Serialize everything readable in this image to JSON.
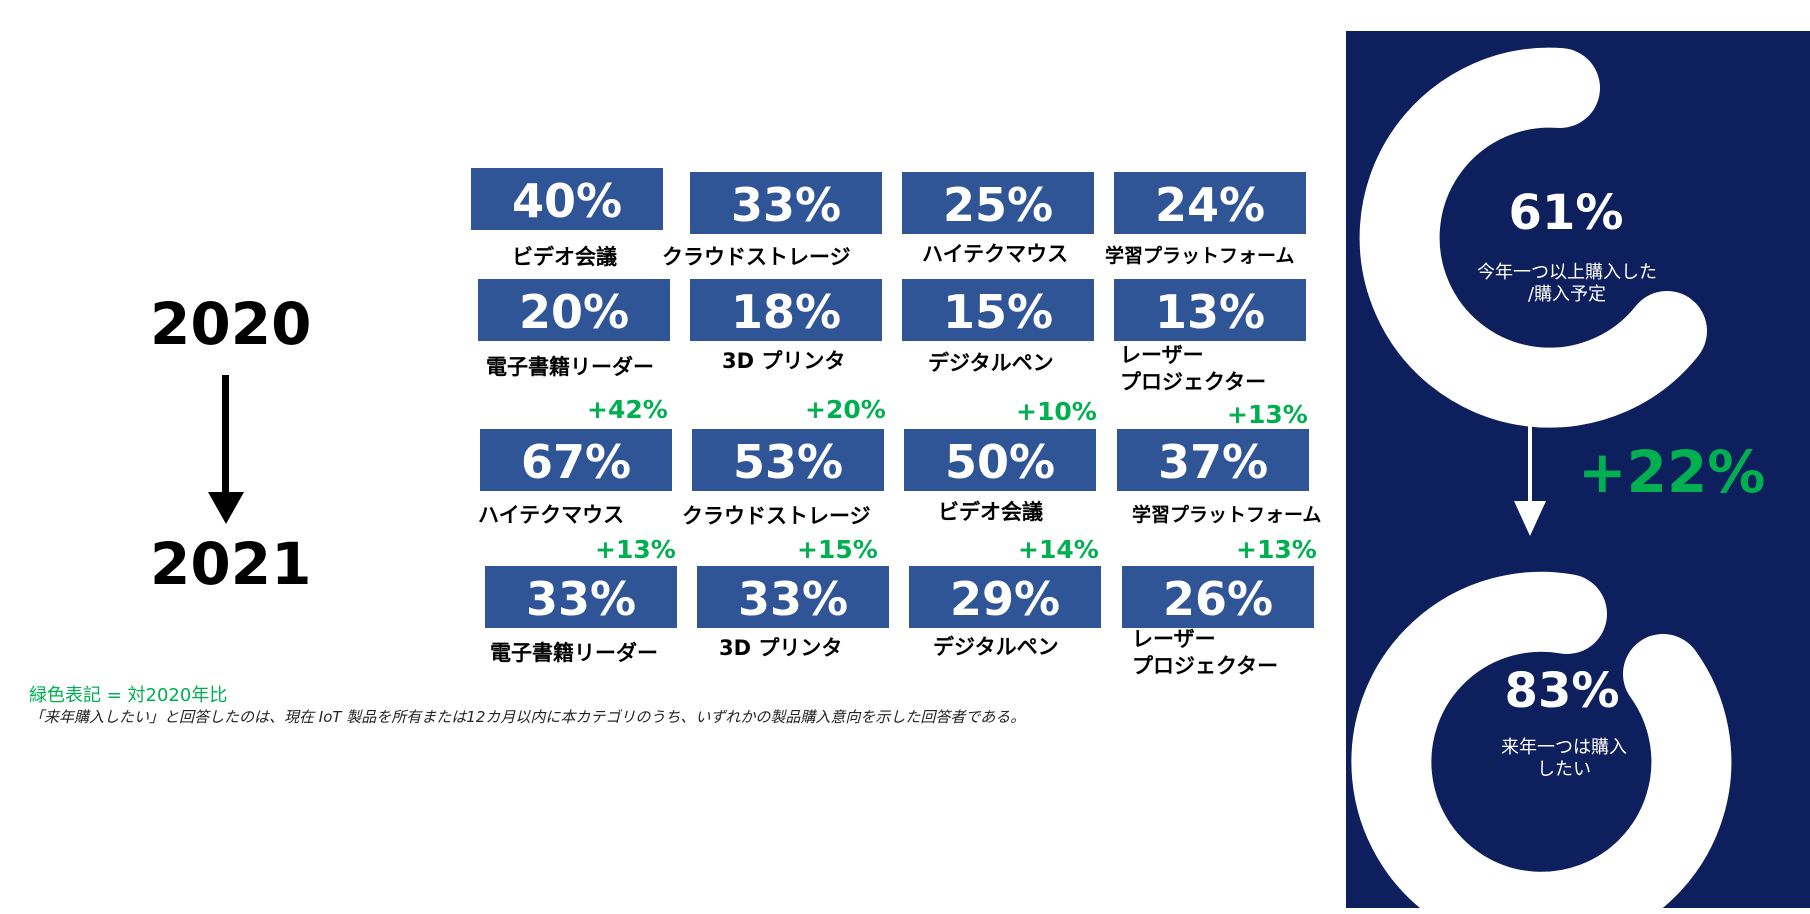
{
  "years": {
    "from": "2020",
    "to": "2021"
  },
  "chart_data": {
    "type": "table",
    "year_2020": [
      {
        "label": "ビデオ会議",
        "value": "40%"
      },
      {
        "label": "クラウドストレージ",
        "value": "33%"
      },
      {
        "label": "ハイテクマウス",
        "value": "25%"
      },
      {
        "label": "学習プラットフォーム",
        "value": "24%"
      },
      {
        "label": "電子書籍リーダー",
        "value": "20%"
      },
      {
        "label": "3D プリンタ",
        "value": "18%"
      },
      {
        "label": "デジタルペン",
        "value": "15%"
      },
      {
        "label": "レーザー\nプロジェクター",
        "value": "13%"
      }
    ],
    "year_2021": [
      {
        "label": "ハイテクマウス",
        "value": "67%",
        "change": "+42%"
      },
      {
        "label": "クラウドストレージ",
        "value": "53%",
        "change": "+20%"
      },
      {
        "label": "ビデオ会議",
        "value": "50%",
        "change": "+10%"
      },
      {
        "label": "学習プラットフォーム",
        "value": "37%",
        "change": "+13%"
      },
      {
        "label": "電子書籍リーダー",
        "value": "33%",
        "change": "+13%"
      },
      {
        "label": "3D プリンタ",
        "value": "33%",
        "change": "+15%"
      },
      {
        "label": "デジタルペン",
        "value": "29%",
        "change": "+14%"
      },
      {
        "label": "レーザー\nプロジェクター",
        "value": "26%",
        "change": "+13%"
      }
    ],
    "donuts": [
      {
        "value": "61%",
        "label": "今年一つ以上購入した\n/購入予定"
      },
      {
        "value": "83%",
        "label": "来年一つは購入\nしたい"
      }
    ],
    "overall_change": "+22%"
  },
  "notes": {
    "legend": "緑色表記 = 対2020年比",
    "footnote": "「来年購入したい」と回答したのは、現在 IoT 製品を所有または12カ月以内に本カテゴリのうち、いずれかの製品購入意向を示した回答者である。"
  },
  "colors": {
    "tile": "#2f5597",
    "panel": "#0d1f5c",
    "green": "#00b050"
  }
}
